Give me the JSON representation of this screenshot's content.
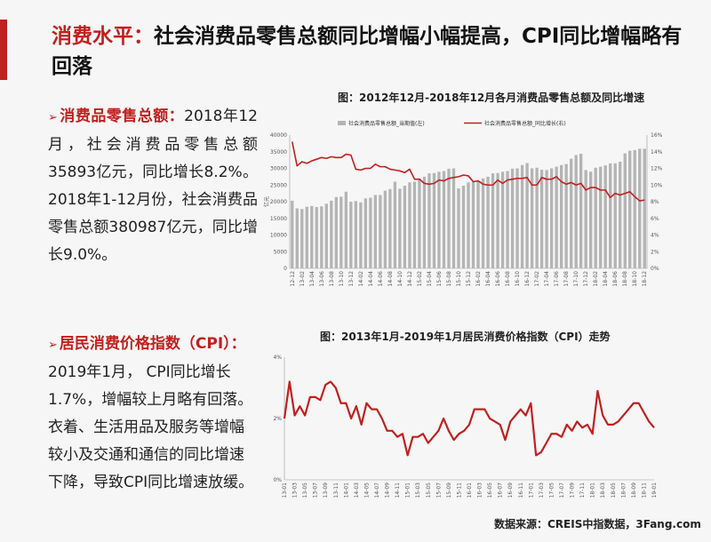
{
  "headline": {
    "part1": "消费水平：",
    "part2": "社会消费品零售总额同比增幅小幅提高，CPI同比增幅略有回落"
  },
  "section1": {
    "heading": "消费品零售总额：",
    "body": "2018年12月，社会消费品零售总额35893亿元，同比增长8.2%。2018年1-12月份，社会消费品零售总额380987亿元，同比增长9.0%。"
  },
  "section2": {
    "heading": "居民消费价格指数（CPI）：",
    "body": "2019年1月， CPI同比增长1.7%，增幅较上月略有回落。衣着、生活用品及服务等增幅较小及交通和通信的同比增速下降，导致CPI同比增速放缓。"
  },
  "source": "数据来源：CREIS中指数据，3Fang.com",
  "colors": {
    "accent": "#c0201e",
    "bar": "#b4b4b4",
    "line": "#c0201e"
  },
  "chart_data": [
    {
      "type": "bar+line",
      "title": "图：2012年12月-2018年12月各月消费品零售总额及同比增速",
      "ylabel": "亿元",
      "legend": [
        "社会消费品零售总额_当期值(左)",
        "社会消费品零售总额_同比增长(右)"
      ],
      "legend_position": "top",
      "y_left_lim": [
        0,
        40000
      ],
      "y_left_ticks": [
        "0",
        "5000",
        "10000",
        "15000",
        "20000",
        "25000",
        "30000",
        "35000",
        "40000"
      ],
      "y_right_lim": [
        0,
        16
      ],
      "y_right_ticks": [
        "0%",
        "2%",
        "4%",
        "6%",
        "8%",
        "10%",
        "12%",
        "14%",
        "16%"
      ],
      "x_tick_labels": [
        "12-12",
        "13-02",
        "13-04",
        "13-06",
        "13-08",
        "13-10",
        "13-12",
        "14-02",
        "14-04",
        "14-06",
        "14-08",
        "14-10",
        "14-12",
        "15-02",
        "15-04",
        "15-06",
        "15-08",
        "15-10",
        "15-12",
        "16-02",
        "16-04",
        "16-06",
        "16-08",
        "16-10",
        "16-12",
        "17-02",
        "17-04",
        "17-06",
        "17-08",
        "17-10",
        "17-12",
        "18-02",
        "18-04",
        "18-06",
        "18-08",
        "18-10",
        "18-12"
      ],
      "months": [
        "12-12",
        "13-01",
        "13-02",
        "13-03",
        "13-04",
        "13-05",
        "13-06",
        "13-07",
        "13-08",
        "13-09",
        "13-10",
        "13-11",
        "13-12",
        "14-01",
        "14-02",
        "14-03",
        "14-04",
        "14-05",
        "14-06",
        "14-07",
        "14-08",
        "14-09",
        "14-10",
        "14-11",
        "14-12",
        "15-01",
        "15-02",
        "15-03",
        "15-04",
        "15-05",
        "15-06",
        "15-07",
        "15-08",
        "15-09",
        "15-10",
        "15-11",
        "15-12",
        "16-01",
        "16-02",
        "16-03",
        "16-04",
        "16-05",
        "16-06",
        "16-07",
        "16-08",
        "16-09",
        "16-10",
        "16-11",
        "16-12",
        "17-01",
        "17-02",
        "17-03",
        "17-04",
        "17-05",
        "17-06",
        "17-07",
        "17-08",
        "17-09",
        "17-10",
        "17-11",
        "17-12",
        "18-01",
        "18-02",
        "18-03",
        "18-04",
        "18-05",
        "18-06",
        "18-07",
        "18-08",
        "18-09",
        "18-10",
        "18-11",
        "18-12"
      ],
      "series": [
        {
          "name": "社会消费品零售总额_当期值(左)",
          "axis": "left",
          "values": [
            20300,
            18000,
            17800,
            18500,
            18700,
            18400,
            18600,
            19400,
            20300,
            21400,
            21500,
            23000,
            20000,
            20200,
            19800,
            21000,
            21200,
            22000,
            22000,
            23300,
            23800,
            26000,
            23900,
            24800,
            25800,
            26000,
            27000,
            27500,
            28500,
            28600,
            29000,
            29200,
            29900,
            30000,
            24000,
            24800,
            25800,
            26000,
            26000,
            27000,
            27500,
            28500,
            28600,
            29000,
            29200,
            29900,
            30000,
            31000,
            31600,
            30000,
            30200,
            29600,
            29500,
            30000,
            30500,
            31000,
            31300,
            32900,
            34000,
            34400,
            29500,
            29000,
            30200,
            30500,
            30900,
            31500,
            31500,
            32000,
            34500,
            35300,
            35500,
            35893,
            35900
          ],
          "values_note": "estimated from chart"
        },
        {
          "name": "社会消费品零售总额_同比增长(右)",
          "axis": "right",
          "values": [
            15.2,
            12.3,
            12.8,
            12.6,
            12.9,
            13.1,
            13.3,
            13.2,
            13.4,
            13.3,
            13.3,
            13.7,
            13.6,
            11.9,
            11.8,
            12.0,
            12.0,
            12.5,
            12.2,
            12.2,
            11.9,
            11.8,
            11.7,
            11.5,
            11.9,
            10.7,
            10.7,
            10.2,
            10.1,
            10.2,
            10.6,
            10.5,
            10.8,
            10.9,
            11.0,
            11.2,
            11.1,
            10.4,
            10.5,
            10.1,
            10.0,
            10.0,
            10.6,
            10.2,
            10.6,
            10.7,
            10.8,
            10.8,
            10.9,
            10.0,
            10.0,
            10.9,
            10.7,
            10.7,
            11.0,
            10.4,
            10.1,
            10.3,
            10.0,
            10.2,
            9.4,
            9.7,
            9.7,
            9.4,
            9.4,
            8.5,
            9.0,
            8.8,
            9.0,
            9.2,
            8.6,
            8.1,
            8.2
          ]
        }
      ]
    },
    {
      "type": "line",
      "title": "图：2013年1月-2019年1月居民消费价格指数（CPI）走势",
      "ylim": [
        0,
        4
      ],
      "y_ticks": [
        "0%",
        "2%",
        "4%"
      ],
      "x_tick_labels": [
        "13-01",
        "13-03",
        "13-05",
        "13-07",
        "13-09",
        "13-11",
        "14-01",
        "14-03",
        "14-05",
        "14-07",
        "14-09",
        "14-11",
        "15-01",
        "15-03",
        "15-05",
        "15-07",
        "15-09",
        "15-11",
        "16-01",
        "16-03",
        "16-05",
        "16-07",
        "16-09",
        "16-11",
        "17-01",
        "17-03",
        "17-05",
        "17-07",
        "17-09",
        "17-11",
        "18-01",
        "18-03",
        "18-05",
        "18-07",
        "18-09",
        "18-11",
        "19-01"
      ],
      "months": [
        "13-01",
        "13-02",
        "13-03",
        "13-04",
        "13-05",
        "13-06",
        "13-07",
        "13-08",
        "13-09",
        "13-10",
        "13-11",
        "13-12",
        "14-01",
        "14-02",
        "14-03",
        "14-04",
        "14-05",
        "14-06",
        "14-07",
        "14-08",
        "14-09",
        "14-10",
        "14-11",
        "14-12",
        "15-01",
        "15-02",
        "15-03",
        "15-04",
        "15-05",
        "15-06",
        "15-07",
        "15-08",
        "15-09",
        "15-10",
        "15-11",
        "15-12",
        "16-01",
        "16-02",
        "16-03",
        "16-04",
        "16-05",
        "16-06",
        "16-07",
        "16-08",
        "16-09",
        "16-10",
        "16-11",
        "16-12",
        "17-01",
        "17-02",
        "17-03",
        "17-04",
        "17-05",
        "17-06",
        "17-07",
        "17-08",
        "17-09",
        "17-10",
        "17-11",
        "17-12",
        "18-01",
        "18-02",
        "18-03",
        "18-04",
        "18-05",
        "18-06",
        "18-07",
        "18-08",
        "18-09",
        "18-10",
        "18-11",
        "18-12",
        "19-01"
      ],
      "series": [
        {
          "name": "CPI同比",
          "values": [
            2.0,
            3.2,
            2.1,
            2.4,
            2.1,
            2.7,
            2.7,
            2.6,
            3.1,
            3.2,
            3.0,
            2.5,
            2.5,
            2.0,
            2.4,
            1.8,
            2.5,
            2.3,
            2.3,
            2.0,
            1.6,
            1.6,
            1.4,
            1.5,
            0.8,
            1.4,
            1.4,
            1.5,
            1.2,
            1.4,
            1.6,
            2.0,
            1.6,
            1.3,
            1.5,
            1.6,
            1.8,
            2.3,
            2.3,
            2.3,
            2.0,
            1.9,
            1.8,
            1.3,
            1.9,
            2.1,
            2.3,
            2.1,
            2.5,
            0.8,
            0.9,
            1.2,
            1.5,
            1.5,
            1.4,
            1.8,
            1.6,
            1.9,
            1.7,
            1.8,
            1.5,
            2.9,
            2.1,
            1.8,
            1.8,
            1.9,
            2.1,
            2.3,
            2.5,
            2.5,
            2.2,
            1.9,
            1.7
          ]
        }
      ]
    }
  ]
}
